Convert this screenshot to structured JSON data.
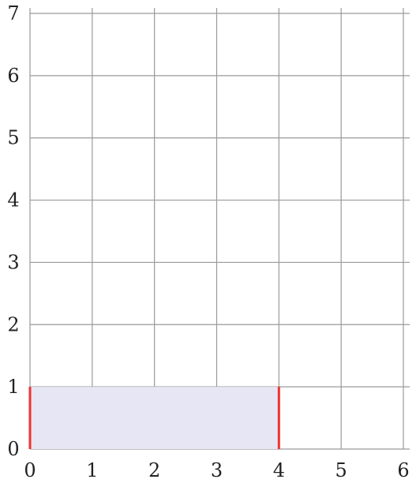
{
  "chart_data": {
    "type": "area",
    "title": "",
    "xlabel": "",
    "ylabel": "",
    "xlim": [
      0,
      6
    ],
    "ylim": [
      0,
      7
    ],
    "x_ticks": [
      "0",
      "1",
      "2",
      "3",
      "4",
      "5",
      "6"
    ],
    "y_ticks": [
      "0",
      "1",
      "2",
      "3",
      "4",
      "5",
      "6",
      "7"
    ],
    "grid": true,
    "shaded_region": {
      "x": [
        0,
        4
      ],
      "y": [
        0,
        1
      ],
      "color": "#e6e6f5"
    },
    "vertical_lines": [
      {
        "x": 0,
        "y": [
          0,
          1
        ],
        "color": "#ee3333"
      },
      {
        "x": 4,
        "y": [
          0,
          1
        ],
        "color": "#ee3333"
      }
    ]
  }
}
